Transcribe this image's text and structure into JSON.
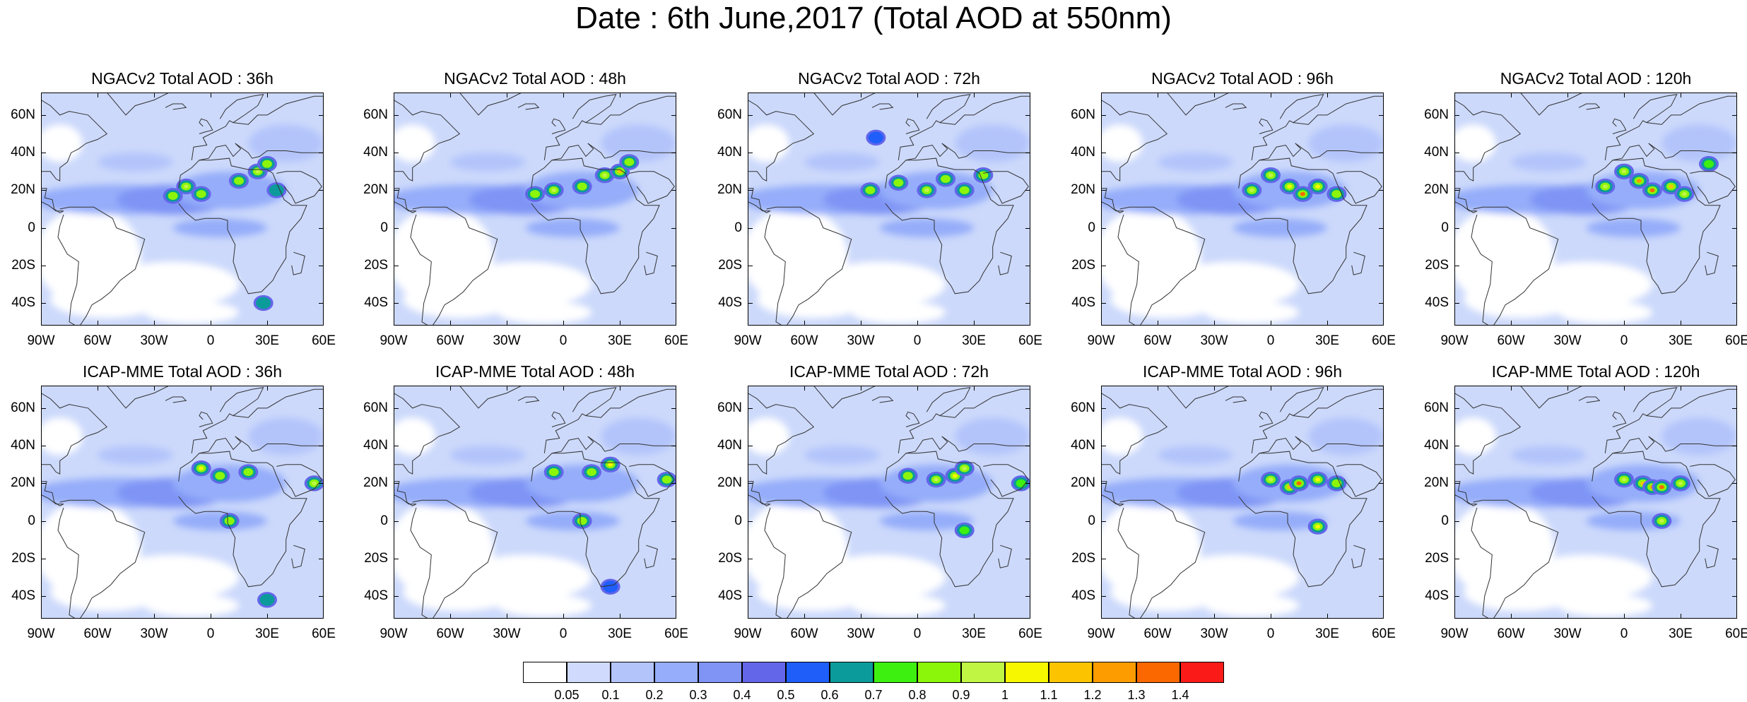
{
  "title": "Date : 6th June,2017 (Total AOD at 550nm)",
  "panels": [
    {
      "title": "NGACv2 Total AOD : 36h",
      "model": "NGACv2",
      "lead": "36h",
      "dust_cores": [
        [
          -20,
          17,
          0.8
        ],
        [
          -13,
          22,
          0.9
        ],
        [
          -5,
          18,
          0.8
        ],
        [
          15,
          25,
          0.8
        ],
        [
          25,
          30,
          0.9
        ],
        [
          30,
          34,
          0.8
        ],
        [
          35,
          20,
          0.6
        ],
        [
          28,
          -40,
          0.6
        ]
      ]
    },
    {
      "title": "NGACv2 Total AOD : 48h",
      "model": "NGACv2",
      "lead": "48h",
      "dust_cores": [
        [
          -15,
          18,
          0.8
        ],
        [
          -5,
          20,
          0.9
        ],
        [
          10,
          22,
          0.8
        ],
        [
          22,
          28,
          0.9
        ],
        [
          30,
          30,
          1.1
        ],
        [
          35,
          35,
          0.8
        ]
      ]
    },
    {
      "title": "NGACv2 Total AOD : 72h",
      "model": "NGACv2",
      "lead": "72h",
      "dust_cores": [
        [
          -25,
          20,
          0.8
        ],
        [
          -10,
          24,
          0.8
        ],
        [
          5,
          20,
          0.9
        ],
        [
          15,
          26,
          0.8
        ],
        [
          25,
          20,
          0.8
        ],
        [
          35,
          28,
          0.8
        ],
        [
          -22,
          48,
          0.5
        ]
      ]
    },
    {
      "title": "NGACv2 Total AOD : 96h",
      "model": "NGACv2",
      "lead": "96h",
      "dust_cores": [
        [
          -10,
          20,
          0.9
        ],
        [
          0,
          28,
          0.9
        ],
        [
          10,
          22,
          1.0
        ],
        [
          17,
          18,
          1.3
        ],
        [
          25,
          22,
          1.0
        ],
        [
          35,
          18,
          0.8
        ]
      ]
    },
    {
      "title": "NGACv2 Total AOD : 120h",
      "model": "NGACv2",
      "lead": "120h",
      "dust_cores": [
        [
          -10,
          22,
          0.9
        ],
        [
          0,
          30,
          0.9
        ],
        [
          8,
          25,
          1.2
        ],
        [
          15,
          20,
          1.3
        ],
        [
          25,
          22,
          1.1
        ],
        [
          32,
          18,
          0.9
        ],
        [
          45,
          34,
          0.7
        ]
      ]
    },
    {
      "title": "ICAP-MME Total AOD : 36h",
      "model": "ICAP-MME",
      "lead": "36h",
      "dust_cores": [
        [
          -5,
          28,
          1.0
        ],
        [
          5,
          24,
          0.8
        ],
        [
          20,
          26,
          0.8
        ],
        [
          55,
          20,
          0.9
        ],
        [
          10,
          0,
          0.8
        ],
        [
          30,
          -42,
          0.6
        ]
      ]
    },
    {
      "title": "ICAP-MME Total AOD : 48h",
      "model": "ICAP-MME",
      "lead": "48h",
      "dust_cores": [
        [
          -5,
          26,
          0.8
        ],
        [
          15,
          26,
          0.8
        ],
        [
          25,
          30,
          1.0
        ],
        [
          55,
          22,
          0.8
        ],
        [
          10,
          0,
          0.8
        ],
        [
          25,
          -35,
          0.5
        ]
      ]
    },
    {
      "title": "ICAP-MME Total AOD : 72h",
      "model": "ICAP-MME",
      "lead": "72h",
      "dust_cores": [
        [
          -5,
          24,
          0.8
        ],
        [
          10,
          22,
          0.9
        ],
        [
          20,
          24,
          1.0
        ],
        [
          25,
          28,
          0.9
        ],
        [
          55,
          20,
          0.7
        ],
        [
          25,
          -5,
          0.7
        ]
      ]
    },
    {
      "title": "ICAP-MME Total AOD : 96h",
      "model": "ICAP-MME",
      "lead": "96h",
      "dust_cores": [
        [
          0,
          22,
          0.9
        ],
        [
          10,
          18,
          1.1
        ],
        [
          15,
          20,
          1.3
        ],
        [
          25,
          22,
          1.0
        ],
        [
          35,
          20,
          0.8
        ],
        [
          25,
          -3,
          1.0
        ]
      ]
    },
    {
      "title": "ICAP-MME Total AOD : 120h",
      "model": "ICAP-MME",
      "lead": "120h",
      "dust_cores": [
        [
          0,
          22,
          0.9
        ],
        [
          10,
          20,
          1.1
        ],
        [
          15,
          18,
          1.2
        ],
        [
          20,
          18,
          1.3
        ],
        [
          30,
          20,
          0.9
        ],
        [
          20,
          0,
          0.9
        ]
      ]
    }
  ],
  "axes": {
    "lon_min": -90,
    "lon_max": 60,
    "lat_min": -52,
    "lat_max": 72,
    "x_ticks": [
      {
        "lon": -90,
        "label": "90W"
      },
      {
        "lon": -60,
        "label": "60W"
      },
      {
        "lon": -30,
        "label": "30W"
      },
      {
        "lon": 0,
        "label": "0"
      },
      {
        "lon": 30,
        "label": "30E"
      },
      {
        "lon": 60,
        "label": "60E"
      }
    ],
    "y_ticks": [
      {
        "lat": 60,
        "label": "60N"
      },
      {
        "lat": 40,
        "label": "40N"
      },
      {
        "lat": 20,
        "label": "20N"
      },
      {
        "lat": 0,
        "label": "0"
      },
      {
        "lat": -20,
        "label": "20S"
      },
      {
        "lat": -40,
        "label": "40S"
      }
    ]
  },
  "colorbar": {
    "labels": [
      "0.05",
      "0.1",
      "0.2",
      "0.3",
      "0.4",
      "0.5",
      "0.6",
      "0.7",
      "0.8",
      "0.9",
      "1",
      "1.1",
      "1.2",
      "1.3",
      "1.4"
    ],
    "colors": [
      "#ffffff",
      "#cfdafc",
      "#b3c4fb",
      "#95adfa",
      "#7f94f5",
      "#6466ea",
      "#1f5ef9",
      "#0b9b9b",
      "#3df010",
      "#8bf50a",
      "#c0f544",
      "#f7f700",
      "#fcc400",
      "#fc9c00",
      "#fb6800",
      "#fa1b18"
    ]
  }
}
